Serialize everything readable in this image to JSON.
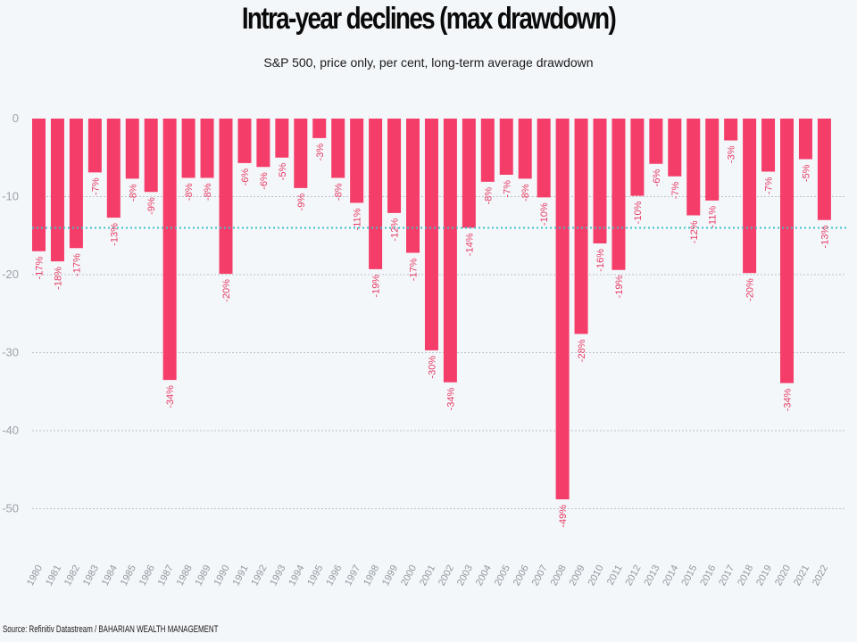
{
  "title": "Intra-year declines (max drawdown)",
  "subtitle": "S&P 500, price only, per cent, long-term average drawdown",
  "source": "Source: Refinitiv Datastream / BAHARIAN WEALTH MANAGEMENT",
  "colors": {
    "bar": "#f43d69",
    "label": "#e63b63",
    "average_line": "#3fc1c9",
    "grid": "#b8c2ca",
    "background": "#f4f7fa"
  },
  "chart_data": {
    "type": "bar",
    "categories": [
      "1980",
      "1981",
      "1982",
      "1983",
      "1984",
      "1985",
      "1986",
      "1987",
      "1988",
      "1989",
      "1990",
      "1991",
      "1992",
      "1993",
      "1994",
      "1995",
      "1996",
      "1997",
      "1998",
      "1999",
      "2000",
      "2001",
      "2002",
      "2003",
      "2004",
      "2005",
      "2006",
      "2007",
      "2008",
      "2009",
      "2010",
      "2011",
      "2012",
      "2013",
      "2014",
      "2015",
      "2016",
      "2017",
      "2018",
      "2019",
      "2020",
      "2021",
      "2022"
    ],
    "values": [
      -17,
      -18.3,
      -16.6,
      -6.9,
      -12.7,
      -7.7,
      -9.4,
      -33.5,
      -7.6,
      -7.6,
      -19.9,
      -5.7,
      -6.2,
      -5,
      -8.9,
      -2.5,
      -7.6,
      -10.8,
      -19.3,
      -12.1,
      -17.2,
      -29.7,
      -33.8,
      -14,
      -8.1,
      -7.2,
      -7.7,
      -10.1,
      -48.8,
      -27.6,
      -16,
      -19.4,
      -9.9,
      -5.8,
      -7.4,
      -12.4,
      -10.5,
      -2.8,
      -19.8,
      -6.8,
      -33.9,
      -5.2,
      -13
    ],
    "labels": [
      "-17%",
      "-18%",
      "-17%",
      "-7%",
      "-13%",
      "-8%",
      "-9%",
      "-34%",
      "-8%",
      "-8%",
      "-20%",
      "-6%",
      "-6%",
      "-5%",
      "-9%",
      "-3%",
      "-8%",
      "-11%",
      "-19%",
      "-12%",
      "-17%",
      "-30%",
      "-34%",
      "-14%",
      "-8%",
      "-7%",
      "-8%",
      "-10%",
      "-49%",
      "-28%",
      "-16%",
      "-19%",
      "-10%",
      "-6%",
      "-7%",
      "-12%",
      "-11%",
      "-3%",
      "-20%",
      "-7%",
      "-34%",
      "-5%",
      "-13%"
    ],
    "y_ticks": [
      0,
      -10,
      -20,
      -30,
      -40,
      -50
    ],
    "y_tick_labels": [
      "0",
      "-10",
      "-20",
      "-30",
      "-40",
      "-50"
    ],
    "ylim": [
      -57,
      0
    ],
    "average": -14,
    "grid": true
  }
}
